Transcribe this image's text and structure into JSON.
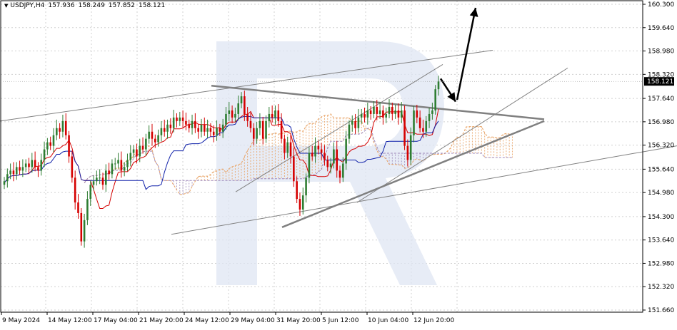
{
  "header": {
    "symbol": "USDJPY,H4",
    "open": "157.936",
    "high": "158.249",
    "low": "157.852",
    "close": "158.121"
  },
  "chart_data": {
    "type": "candlestick",
    "symbol": "USDJPY",
    "timeframe": "H4",
    "x_ticks": [
      "9 May 2024",
      "14 May 12:00",
      "17 May 04:00",
      "21 May 20:00",
      "24 May 12:00",
      "29 May 04:00",
      "31 May 20:00",
      "5 Jun 12:00",
      "10 Jun 04:00",
      "12 Jun 20:00"
    ],
    "y_ticks": [
      "160.300",
      "159.640",
      "158.980",
      "158.320",
      "157.640",
      "156.980",
      "156.320",
      "155.640",
      "154.980",
      "154.300",
      "153.640",
      "152.980",
      "152.320",
      "151.660"
    ],
    "ylim": [
      151.66,
      160.3
    ],
    "current_price": "158.121",
    "grid": true,
    "candle_colors": {
      "up": "#2e7d32",
      "down": "#d50000"
    },
    "line_colors": {
      "tenkan": "#d50000",
      "kijun": "#0d1ea8",
      "cloud": "#e8a060",
      "cloud_alt": "#9c86b8",
      "trend": "#808080",
      "arrow": "#000000"
    },
    "candles_close": [
      155.3,
      155.5,
      155.6,
      155.5,
      155.7,
      155.6,
      155.7,
      155.8,
      155.7,
      155.9,
      155.7,
      155.6,
      155.9,
      156.2,
      156.4,
      156.3,
      156.6,
      156.8,
      156.7,
      157.0,
      156.6,
      156.0,
      155.4,
      154.7,
      154.4,
      153.6,
      154.2,
      154.8,
      155.2,
      155.3,
      155.4,
      155.4,
      155.2,
      155.6,
      155.5,
      155.8,
      155.8,
      155.9,
      155.6,
      155.7,
      155.9,
      156.1,
      156.2,
      156.0,
      156.3,
      156.2,
      156.5,
      156.7,
      156.5,
      156.4,
      156.6,
      156.8,
      156.7,
      156.9,
      156.8,
      157.1,
      157.0,
      157.1,
      157.0,
      156.9,
      156.8,
      157.0,
      156.8,
      156.7,
      156.9,
      156.7,
      156.8,
      156.7,
      156.6,
      156.8,
      156.7,
      156.9,
      157.2,
      157.3,
      157.1,
      157.2,
      157.5,
      157.7,
      157.2,
      157.0,
      156.8,
      156.5,
      156.8,
      157.0,
      156.5,
      157.0,
      157.2,
      157.1,
      157.3,
      157.0,
      156.5,
      156.1,
      156.4,
      156.0,
      155.3,
      154.8,
      154.5,
      154.9,
      155.4,
      156.1,
      156.0,
      156.3,
      156.2,
      156.1,
      155.9,
      155.7,
      155.8,
      156.2,
      155.6,
      155.4,
      155.8,
      156.5,
      156.9,
      157.0,
      156.8,
      157.1,
      157.2,
      157.1,
      157.3,
      157.2,
      157.4,
      157.2,
      157.3,
      157.1,
      157.2,
      157.4,
      157.2,
      157.3,
      157.1,
      157.3,
      156.3,
      155.9,
      156.6,
      157.3,
      157.1,
      156.8,
      156.7,
      157.0,
      157.2,
      157.3,
      157.9,
      158.12
    ],
    "lines": [
      {
        "name": "channel-upper",
        "points": [
          [
            0,
            157.0
          ],
          [
            690,
            159.0
          ]
        ]
      },
      {
        "name": "channel-mid",
        "points": [
          [
            330,
            155.0
          ],
          [
            620,
            158.6
          ]
        ]
      },
      {
        "name": "channel-low",
        "points": [
          [
            500,
            154.7
          ],
          [
            795,
            158.5
          ]
        ]
      },
      {
        "name": "lower-line",
        "points": [
          [
            240,
            153.8
          ],
          [
            948,
            156.3
          ]
        ]
      },
      {
        "name": "triangle-top",
        "points": [
          [
            296,
            158.0
          ],
          [
            762,
            157.05
          ]
        ]
      },
      {
        "name": "triangle-bottom",
        "points": [
          [
            395,
            154.0
          ],
          [
            762,
            157.0
          ]
        ]
      }
    ],
    "arrows": [
      {
        "name": "arrow-down",
        "from": [
          617,
          158.2
        ],
        "to": [
          638,
          157.55
        ]
      },
      {
        "name": "arrow-up",
        "from": [
          640,
          157.6
        ],
        "to": [
          666,
          160.2
        ]
      }
    ]
  }
}
